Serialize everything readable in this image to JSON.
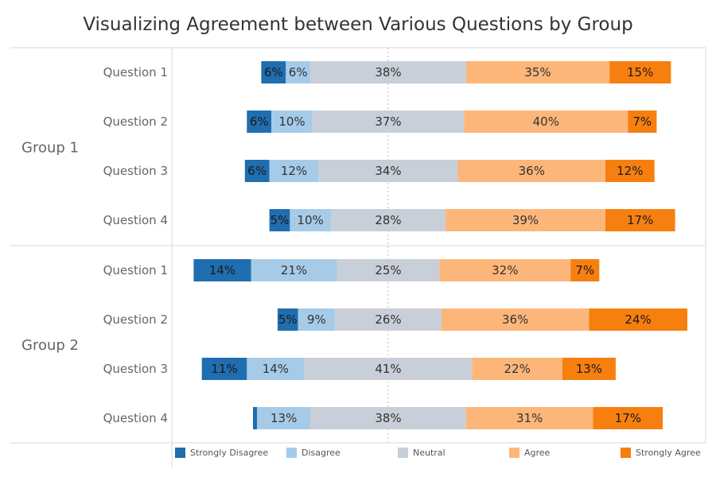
{
  "chart_data": {
    "type": "bar",
    "title": "Visualizing Agreement between Various Questions by Group",
    "orientation": "horizontal",
    "stacked": true,
    "diverging": true,
    "legend_position": "bottom",
    "categories_legend": [
      "Strongly Disagree",
      "Disagree",
      "Neutral",
      "Agree",
      "Strongly Agree"
    ],
    "colors": [
      "#1f6eaf",
      "#a6cbe8",
      "#c8cfd8",
      "#fdb679",
      "#f77f0f"
    ],
    "groups": [
      {
        "name": "Group 1",
        "questions": [
          {
            "name": "Question 1",
            "values": [
              6,
              6,
              38,
              35,
              15
            ]
          },
          {
            "name": "Question 2",
            "values": [
              6,
              10,
              37,
              40,
              7
            ]
          },
          {
            "name": "Question 3",
            "values": [
              6,
              12,
              34,
              36,
              12
            ]
          },
          {
            "name": "Question 4",
            "values": [
              5,
              10,
              28,
              39,
              17
            ]
          }
        ]
      },
      {
        "name": "Group 2",
        "questions": [
          {
            "name": "Question 1",
            "values": [
              14,
              21,
              25,
              32,
              7
            ]
          },
          {
            "name": "Question 2",
            "values": [
              5,
              9,
              26,
              36,
              24
            ]
          },
          {
            "name": "Question 3",
            "values": [
              11,
              14,
              41,
              22,
              13
            ]
          },
          {
            "name": "Question 4",
            "values": [
              1,
              13,
              38,
              31,
              17
            ]
          }
        ]
      }
    ]
  }
}
